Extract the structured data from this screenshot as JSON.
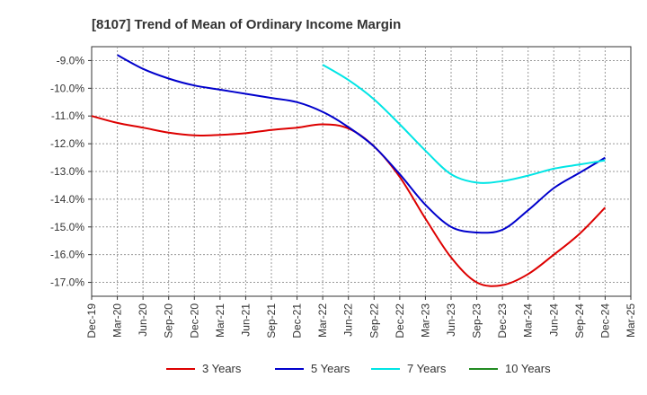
{
  "chart_data": {
    "type": "line",
    "title": "[8107]  Trend of Mean of Ordinary Income Margin",
    "xlabel": "",
    "ylabel": "",
    "x_ticks": [
      "Dec-19",
      "Mar-20",
      "Jun-20",
      "Sep-20",
      "Dec-20",
      "Mar-21",
      "Jun-21",
      "Sep-21",
      "Dec-21",
      "Mar-22",
      "Jun-22",
      "Sep-22",
      "Dec-22",
      "Mar-23",
      "Jun-23",
      "Sep-23",
      "Dec-23",
      "Mar-24",
      "Jun-24",
      "Sep-24",
      "Dec-24",
      "Mar-25"
    ],
    "y_ticks": [
      "-9.0%",
      "-10.0%",
      "-11.0%",
      "-12.0%",
      "-13.0%",
      "-14.0%",
      "-15.0%",
      "-16.0%",
      "-17.0%"
    ],
    "ylim": [
      -17.5,
      -8.5
    ],
    "y_inverted": true,
    "grid": true,
    "legend_position": "bottom",
    "series": [
      {
        "name": "3 Years",
        "color": "#dd0000",
        "x": [
          "Dec-19",
          "Mar-20",
          "Jun-20",
          "Sep-20",
          "Dec-20",
          "Mar-21",
          "Jun-21",
          "Sep-21",
          "Dec-21",
          "Mar-22",
          "Jun-22",
          "Sep-22",
          "Dec-22",
          "Mar-23",
          "Jun-23",
          "Sep-23",
          "Dec-23",
          "Mar-24",
          "Jun-24",
          "Sep-24",
          "Dec-24"
        ],
        "values": [
          -11.0,
          -11.25,
          -11.42,
          -11.6,
          -11.7,
          -11.68,
          -11.62,
          -11.5,
          -11.42,
          -11.3,
          -11.45,
          -12.1,
          -13.2,
          -14.7,
          -16.1,
          -17.0,
          -17.1,
          -16.7,
          -16.0,
          -15.25,
          -14.3
        ]
      },
      {
        "name": "5 Years",
        "color": "#0000cc",
        "x": [
          "Mar-20",
          "Jun-20",
          "Sep-20",
          "Dec-20",
          "Mar-21",
          "Jun-21",
          "Sep-21",
          "Dec-21",
          "Mar-22",
          "Jun-22",
          "Sep-22",
          "Dec-22",
          "Mar-23",
          "Jun-23",
          "Sep-23",
          "Dec-23",
          "Mar-24",
          "Jun-24",
          "Sep-24",
          "Dec-24"
        ],
        "values": [
          -8.8,
          -9.3,
          -9.65,
          -9.9,
          -10.05,
          -10.2,
          -10.35,
          -10.5,
          -10.85,
          -11.4,
          -12.1,
          -13.1,
          -14.2,
          -15.0,
          -15.2,
          -15.1,
          -14.4,
          -13.6,
          -13.05,
          -12.5
        ]
      },
      {
        "name": "7 Years",
        "color": "#00e5e5",
        "x": [
          "Mar-22",
          "Jun-22",
          "Sep-22",
          "Dec-22",
          "Mar-23",
          "Jun-23",
          "Sep-23",
          "Dec-23",
          "Mar-24",
          "Jun-24",
          "Sep-24",
          "Dec-24"
        ],
        "values": [
          -9.15,
          -9.7,
          -10.4,
          -11.3,
          -12.25,
          -13.1,
          -13.4,
          -13.35,
          -13.15,
          -12.9,
          -12.75,
          -12.6
        ]
      },
      {
        "name": "10 Years",
        "color": "#228b22",
        "x": [],
        "values": []
      }
    ]
  }
}
